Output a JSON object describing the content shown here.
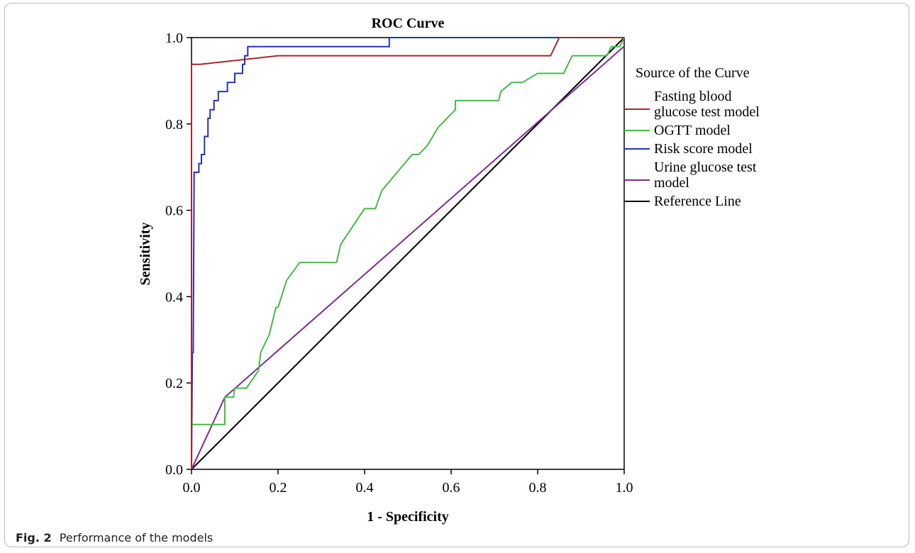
{
  "caption": {
    "label": "Fig. 2",
    "text": "Performance of the models"
  },
  "chart_data": {
    "type": "line",
    "title": "ROC Curve",
    "xlabel": "1 - Specificity",
    "ylabel": "Sensitivity",
    "xlim": [
      0,
      1
    ],
    "ylim": [
      0,
      1
    ],
    "x_ticks": [
      "0.0",
      "0.2",
      "0.4",
      "0.6",
      "0.8",
      "1.0"
    ],
    "y_ticks": [
      "0.0",
      "0.2",
      "0.4",
      "0.6",
      "0.8",
      "1.0"
    ],
    "grid": false,
    "legend_title": "Source of the Curve",
    "legend_position": "right",
    "series": [
      {
        "name": "Fasting blood glucose test model",
        "legend_lines": [
          "Fasting blood",
          "glucose test model"
        ],
        "color": "#a52a2a",
        "points": [
          [
            0,
            0
          ],
          [
            0,
            0.938
          ],
          [
            0.02,
            0.938
          ],
          [
            0.2,
            0.958
          ],
          [
            0.83,
            0.958
          ],
          [
            0.85,
            1.0
          ],
          [
            1.0,
            1.0
          ]
        ]
      },
      {
        "name": "OGTT model",
        "legend_lines": [
          "OGTT model"
        ],
        "color": "#44bb44",
        "points": [
          [
            0,
            0
          ],
          [
            0,
            0.104
          ],
          [
            0.077,
            0.104
          ],
          [
            0.077,
            0.167
          ],
          [
            0.097,
            0.167
          ],
          [
            0.1,
            0.188
          ],
          [
            0.127,
            0.188
          ],
          [
            0.155,
            0.229
          ],
          [
            0.16,
            0.271
          ],
          [
            0.18,
            0.313
          ],
          [
            0.19,
            0.354
          ],
          [
            0.195,
            0.375
          ],
          [
            0.2,
            0.375
          ],
          [
            0.22,
            0.438
          ],
          [
            0.25,
            0.479
          ],
          [
            0.335,
            0.479
          ],
          [
            0.345,
            0.521
          ],
          [
            0.4,
            0.604
          ],
          [
            0.425,
            0.604
          ],
          [
            0.44,
            0.646
          ],
          [
            0.51,
            0.729
          ],
          [
            0.525,
            0.729
          ],
          [
            0.545,
            0.75
          ],
          [
            0.57,
            0.792
          ],
          [
            0.61,
            0.833
          ],
          [
            0.61,
            0.854
          ],
          [
            0.71,
            0.854
          ],
          [
            0.715,
            0.875
          ],
          [
            0.74,
            0.896
          ],
          [
            0.765,
            0.896
          ],
          [
            0.8,
            0.917
          ],
          [
            0.86,
            0.917
          ],
          [
            0.88,
            0.958
          ],
          [
            0.96,
            0.958
          ],
          [
            0.97,
            0.979
          ],
          [
            0.99,
            0.979
          ],
          [
            1.0,
            1.0
          ]
        ]
      },
      {
        "name": "Risk score model",
        "legend_lines": [
          "Risk score model"
        ],
        "color": "#2233bb",
        "points": [
          [
            0,
            0
          ],
          [
            0.002,
            0.271
          ],
          [
            0.004,
            0.271
          ],
          [
            0.006,
            0.688
          ],
          [
            0.017,
            0.688
          ],
          [
            0.017,
            0.708
          ],
          [
            0.023,
            0.708
          ],
          [
            0.023,
            0.729
          ],
          [
            0.03,
            0.729
          ],
          [
            0.03,
            0.771
          ],
          [
            0.038,
            0.771
          ],
          [
            0.038,
            0.813
          ],
          [
            0.043,
            0.813
          ],
          [
            0.043,
            0.833
          ],
          [
            0.052,
            0.833
          ],
          [
            0.052,
            0.854
          ],
          [
            0.062,
            0.854
          ],
          [
            0.062,
            0.875
          ],
          [
            0.083,
            0.875
          ],
          [
            0.083,
            0.896
          ],
          [
            0.1,
            0.896
          ],
          [
            0.1,
            0.917
          ],
          [
            0.118,
            0.917
          ],
          [
            0.118,
            0.938
          ],
          [
            0.123,
            0.938
          ],
          [
            0.123,
            0.958
          ],
          [
            0.13,
            0.958
          ],
          [
            0.13,
            0.979
          ],
          [
            0.457,
            0.979
          ],
          [
            0.457,
            1.0
          ],
          [
            1.0,
            1.0
          ]
        ]
      },
      {
        "name": "Urine glucose test model",
        "legend_lines": [
          "Urine glucose test",
          "model"
        ],
        "color": "#7b2d8e",
        "points": [
          [
            0,
            0
          ],
          [
            0.077,
            0.167
          ],
          [
            1.0,
            0.98
          ]
        ]
      },
      {
        "name": "Reference Line",
        "legend_lines": [
          "Reference Line"
        ],
        "color": "#000000",
        "points": [
          [
            0,
            0
          ],
          [
            1.0,
            1.0
          ]
        ]
      }
    ]
  }
}
